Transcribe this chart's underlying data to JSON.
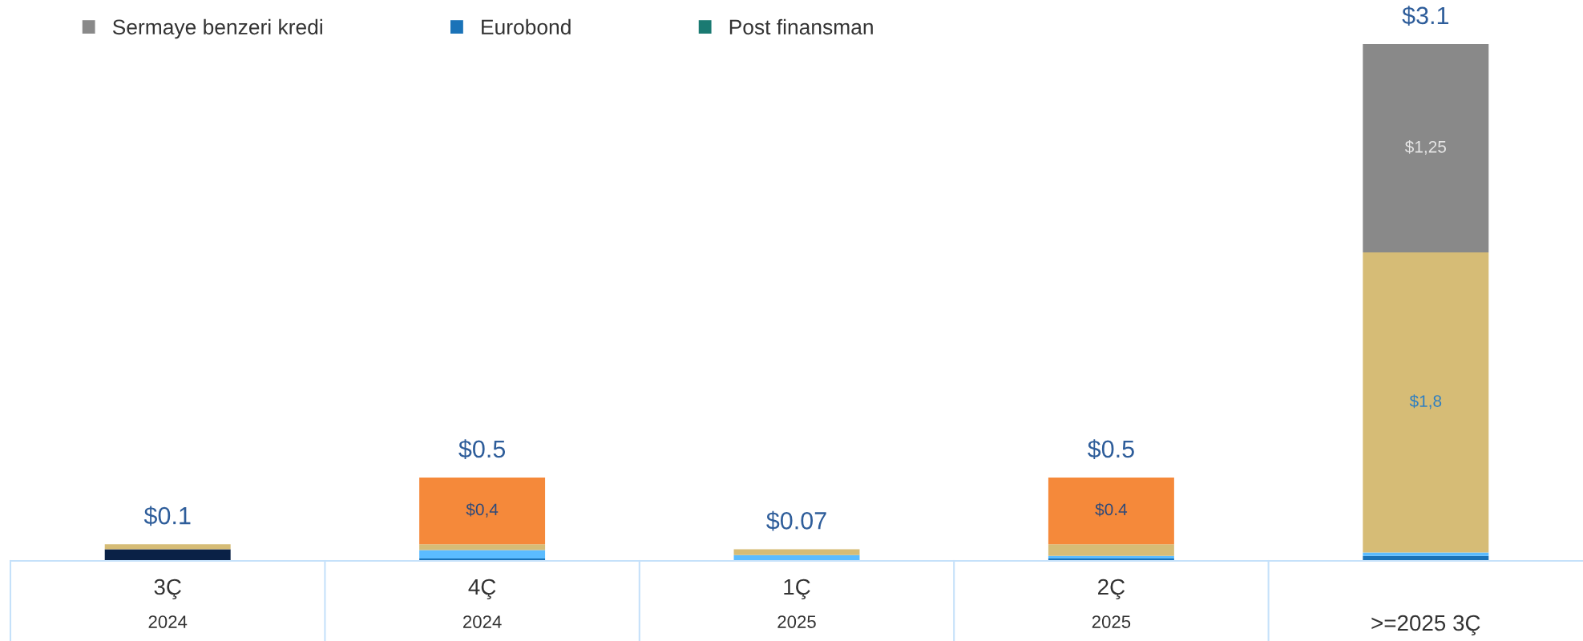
{
  "chart_data": {
    "type": "bar",
    "stacked": true,
    "legend": "top left",
    "categories": [
      "3Ç\n2024",
      "4Ç\n2024",
      "1Ç\n2025",
      "2Ç\n2025",
      ">=2025 3Ç"
    ],
    "ylim": [
      0,
      3.1
    ],
    "series": [
      {
        "color": "#0a2146",
        "values": [
          0.07,
          null,
          null,
          null,
          null
        ],
        "value_labels": [
          null,
          null,
          null,
          null,
          null
        ]
      },
      {
        "name": "Eurobond",
        "color": "#1a73b8",
        "values": [
          null,
          0.015,
          null,
          0.015,
          0.03
        ],
        "value_labels": [
          null,
          null,
          null,
          null,
          null
        ]
      },
      {
        "color": "#5bbcff",
        "values": [
          null,
          0.05,
          0.035,
          0.015,
          0.02
        ],
        "value_labels": [
          null,
          null,
          null,
          null,
          null
        ]
      },
      {
        "color": "#d6bc76",
        "values": [
          0.03,
          0.035,
          0.035,
          0.07,
          1.8
        ],
        "value_labels": [
          null,
          null,
          null,
          null,
          "$1,8"
        ]
      },
      {
        "color": "#f5893a",
        "values": [
          null,
          0.4,
          null,
          0.4,
          null
        ],
        "value_labels": [
          null,
          "$0,4",
          null,
          "$0.4",
          null
        ]
      },
      {
        "name": "Sermaye benzeri kredi",
        "color": "#898989",
        "values": [
          null,
          null,
          null,
          null,
          1.25
        ],
        "value_labels": [
          null,
          null,
          null,
          null,
          "$1,25"
        ]
      },
      {
        "name": "Post finansman",
        "color": "#1a7a72",
        "values": [
          null,
          null,
          null,
          null,
          null
        ]
      }
    ],
    "totals": [
      "$0.1",
      "$0.5",
      "$0.07",
      "$0.5",
      "$3.1"
    ]
  }
}
